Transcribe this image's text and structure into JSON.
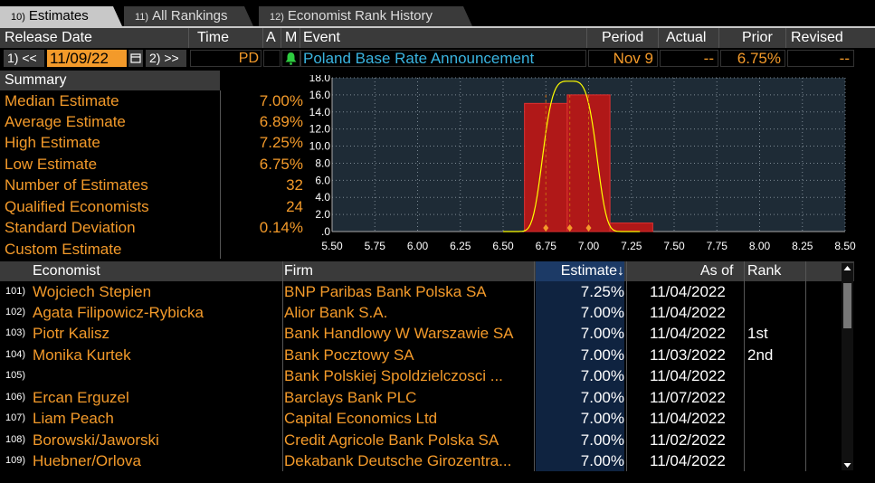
{
  "tabs": [
    {
      "num": "10)",
      "label": "Estimates"
    },
    {
      "num": "11)",
      "label": "All Rankings"
    },
    {
      "num": "12)",
      "label": "Economist Rank History"
    }
  ],
  "header": {
    "release_date": "Release Date",
    "time": "Time",
    "a": "A",
    "m": "M",
    "event": "Event",
    "period": "Period",
    "actual": "Actual",
    "prior": "Prior",
    "revised": "Revised"
  },
  "event_row": {
    "prev_btn": "1) <<",
    "date": "11/09/22",
    "next_btn": "2) >>",
    "time": "PD",
    "event": "Poland Base Rate Announcement",
    "period": "Nov 9",
    "actual": "--",
    "prior": "6.75%",
    "revised": "--"
  },
  "summary": {
    "title": "Summary",
    "rows": [
      {
        "label": "Median Estimate",
        "value": "7.00%"
      },
      {
        "label": "Average Estimate",
        "value": "6.89%"
      },
      {
        "label": "High Estimate",
        "value": "7.25%"
      },
      {
        "label": "Low Estimate",
        "value": "6.75%"
      },
      {
        "label": "Number of Estimates",
        "value": "32"
      },
      {
        "label": "Qualified Economists",
        "value": "24"
      },
      {
        "label": "Standard Deviation",
        "value": "0.14%"
      },
      {
        "label": "Custom Estimate",
        "value": ""
      }
    ]
  },
  "chart_data": {
    "type": "bar",
    "x_ticks": [
      "5.50",
      "5.75",
      "6.00",
      "6.25",
      "6.50",
      "6.75",
      "7.00",
      "7.25",
      "7.50",
      "7.75",
      "8.00",
      "8.25",
      "8.50"
    ],
    "y_ticks": [
      ".0",
      "2.0",
      "4.0",
      "6.0",
      "8.0",
      "10.0",
      "12.0",
      "14.0",
      "16.0",
      "18.0"
    ],
    "xlim": [
      5.5,
      8.5
    ],
    "ylim": [
      0,
      18
    ],
    "bins": [
      {
        "from": 6.625,
        "to": 6.875,
        "count": 15
      },
      {
        "from": 6.875,
        "to": 7.125,
        "count": 16
      },
      {
        "from": 7.125,
        "to": 7.375,
        "count": 1
      }
    ],
    "markers": [
      6.75,
      6.89,
      7.0
    ],
    "grid": true,
    "colors": {
      "bar": "#b01818",
      "curve": "#ffff00",
      "marker": "#f39a2a"
    }
  },
  "table": {
    "headers": {
      "economist": "Economist",
      "firm": "Firm",
      "estimate": "Estimate↓",
      "as_of": "As of",
      "rank": "Rank"
    },
    "rows": [
      {
        "idx": "101)",
        "economist": "Wojciech Stepien",
        "firm": "BNP Paribas Bank Polska SA",
        "estimate": "7.25%",
        "as_of": "11/04/2022",
        "rank": ""
      },
      {
        "idx": "102)",
        "economist": "Agata Filipowicz-Rybicka",
        "firm": "Alior Bank S.A.",
        "estimate": "7.00%",
        "as_of": "11/04/2022",
        "rank": ""
      },
      {
        "idx": "103)",
        "economist": "Piotr Kalisz",
        "firm": "Bank Handlowy W Warszawie SA",
        "estimate": "7.00%",
        "as_of": "11/04/2022",
        "rank": "1st"
      },
      {
        "idx": "104)",
        "economist": "Monika Kurtek",
        "firm": "Bank Pocztowy SA",
        "estimate": "7.00%",
        "as_of": "11/03/2022",
        "rank": "2nd"
      },
      {
        "idx": "105)",
        "economist": "",
        "firm": "Bank Polskiej Spoldzielczosci ...",
        "estimate": "7.00%",
        "as_of": "11/04/2022",
        "rank": ""
      },
      {
        "idx": "106)",
        "economist": "Ercan Erguzel",
        "firm": "Barclays Bank PLC",
        "estimate": "7.00%",
        "as_of": "11/07/2022",
        "rank": ""
      },
      {
        "idx": "107)",
        "economist": "Liam Peach",
        "firm": "Capital Economics Ltd",
        "estimate": "7.00%",
        "as_of": "11/04/2022",
        "rank": ""
      },
      {
        "idx": "108)",
        "economist": "Borowski/Jaworski",
        "firm": "Credit Agricole Bank Polska SA",
        "estimate": "7.00%",
        "as_of": "11/02/2022",
        "rank": ""
      },
      {
        "idx": "109)",
        "economist": "Huebner/Orlova",
        "firm": "Dekabank Deutsche Girozentra...",
        "estimate": "7.00%",
        "as_of": "11/04/2022",
        "rank": ""
      }
    ]
  }
}
